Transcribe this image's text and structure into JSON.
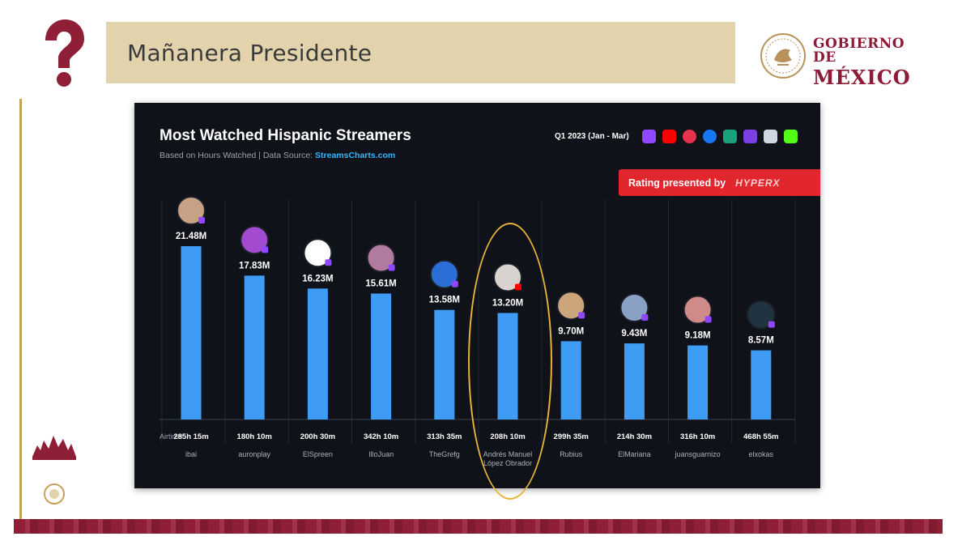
{
  "header": {
    "title": "Mañanera Presidente"
  },
  "government": {
    "line1": "GOBIERNO DE",
    "line2": "MÉXICO"
  },
  "icons": {
    "question_mark": "question-mark-icon",
    "seal": "government-seal-icon"
  },
  "colors": {
    "header_band": "#e2d3ad",
    "government": "#8c1c35",
    "bar": "#3f9cf5",
    "highlight": "#e8b338",
    "badge": "#e1262e"
  },
  "chart_data": {
    "type": "bar",
    "title": "Most Watched Hispanic Streamers",
    "subtitle_prefix": "Based on Hours Watched  |  Data Source: ",
    "subtitle_source": "StreamsCharts.com",
    "period": "Q1 2023 (Jan - Mar)",
    "rating_text": "Rating presented by",
    "rating_brand": "HYPERX",
    "airtime_label": "Airtime:",
    "categories": [
      "ibai",
      "auronplay",
      "ElSpreen",
      "IlloJuan",
      "TheGrefg",
      "Andrés Manuel López Obrador",
      "Rubius",
      "ElMariana",
      "juansguarnizo",
      "elxokas"
    ],
    "values": [
      21.48,
      17.83,
      16.23,
      15.61,
      13.58,
      13.2,
      9.7,
      9.43,
      9.18,
      8.57
    ],
    "value_labels": [
      "21.48M",
      "17.83M",
      "16.23M",
      "15.61M",
      "13.58M",
      "13.20M",
      "9.70M",
      "9.43M",
      "9.18M",
      "8.57M"
    ],
    "airtime": [
      "285h 15m",
      "180h 10m",
      "200h 30m",
      "342h 10m",
      "313h 35m",
      "208h 10m",
      "299h 35m",
      "214h 30m",
      "316h 10m",
      "468h 55m"
    ],
    "highlighted": "Andrés Manuel López Obrador",
    "ylim": [
      0,
      21.48
    ]
  }
}
